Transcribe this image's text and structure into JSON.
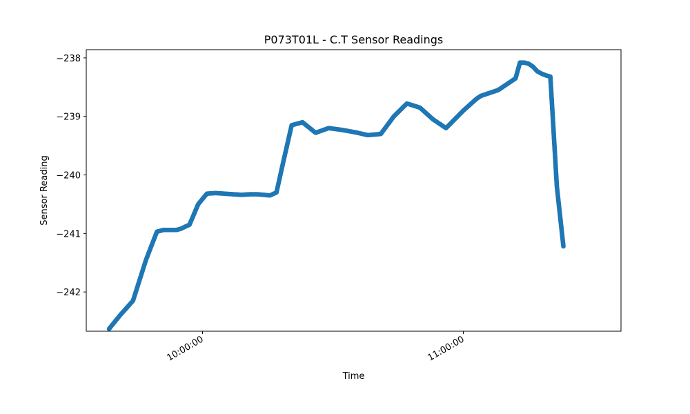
{
  "chart_data": {
    "type": "scatter",
    "title": "P073T01L - C.T Sensor Readings",
    "xlabel": "Time",
    "ylabel": "Sensor Reading",
    "x_format": "HH:MM:SS",
    "xlim": [
      "09:33:15",
      "11:36:15"
    ],
    "ylim": [
      -242.67,
      -237.86
    ],
    "x_ticks": [
      "10:00:00",
      "11:00:00"
    ],
    "y_ticks": [
      -242,
      -241,
      -240,
      -239,
      -238
    ],
    "y_tick_labels": [
      "−242",
      "−241",
      "−240",
      "−239",
      "−238"
    ],
    "grid": false,
    "color": "#1f77b4",
    "series": [
      {
        "x": [
          "09:38:30",
          "09:41:00",
          "09:44:00",
          "09:47:00",
          "09:49:30",
          "09:51:00",
          "09:52:30",
          "09:54:00",
          "09:55:00",
          "09:57:00",
          "09:59:00",
          "10:01:00",
          "10:03:00",
          "10:05:00",
          "10:07:00",
          "10:09:00",
          "10:11:00",
          "10:12:30",
          "10:14:00",
          "10:15:30",
          "10:17:00",
          "10:18:30",
          "10:20:30",
          "10:23:00",
          "10:26:00",
          "10:29:00",
          "10:32:00",
          "10:35:00",
          "10:38:00",
          "10:41:00",
          "10:44:00",
          "10:47:00",
          "10:50:00",
          "10:53:00",
          "10:56:00",
          "10:58:00",
          "11:00:00",
          "11:01:30",
          "11:03:00",
          "11:04:00",
          "11:06:00",
          "11:08:00",
          "11:10:00",
          "11:12:00",
          "11:13:00",
          "11:14:00",
          "11:15:00",
          "11:16:00",
          "11:17:00",
          "11:18:00",
          "11:19:00",
          "11:20:00",
          "11:21:30",
          "11:23:00"
        ],
        "y": [
          -242.63,
          -242.4,
          -242.15,
          -241.45,
          -240.97,
          -240.94,
          -240.94,
          -240.94,
          -240.92,
          -240.85,
          -240.5,
          -240.32,
          -240.31,
          -240.32,
          -240.33,
          -240.34,
          -240.33,
          -240.33,
          -240.34,
          -240.35,
          -240.3,
          -239.8,
          -239.15,
          -239.1,
          -239.28,
          -239.2,
          -239.23,
          -239.27,
          -239.32,
          -239.3,
          -239.0,
          -238.78,
          -238.85,
          -239.05,
          -239.2,
          -239.05,
          -238.9,
          -238.8,
          -238.7,
          -238.65,
          -238.6,
          -238.55,
          -238.45,
          -238.35,
          -238.08,
          -238.08,
          -238.1,
          -238.15,
          -238.23,
          -238.27,
          -238.3,
          -238.32,
          -240.2,
          -241.22
        ]
      }
    ]
  }
}
